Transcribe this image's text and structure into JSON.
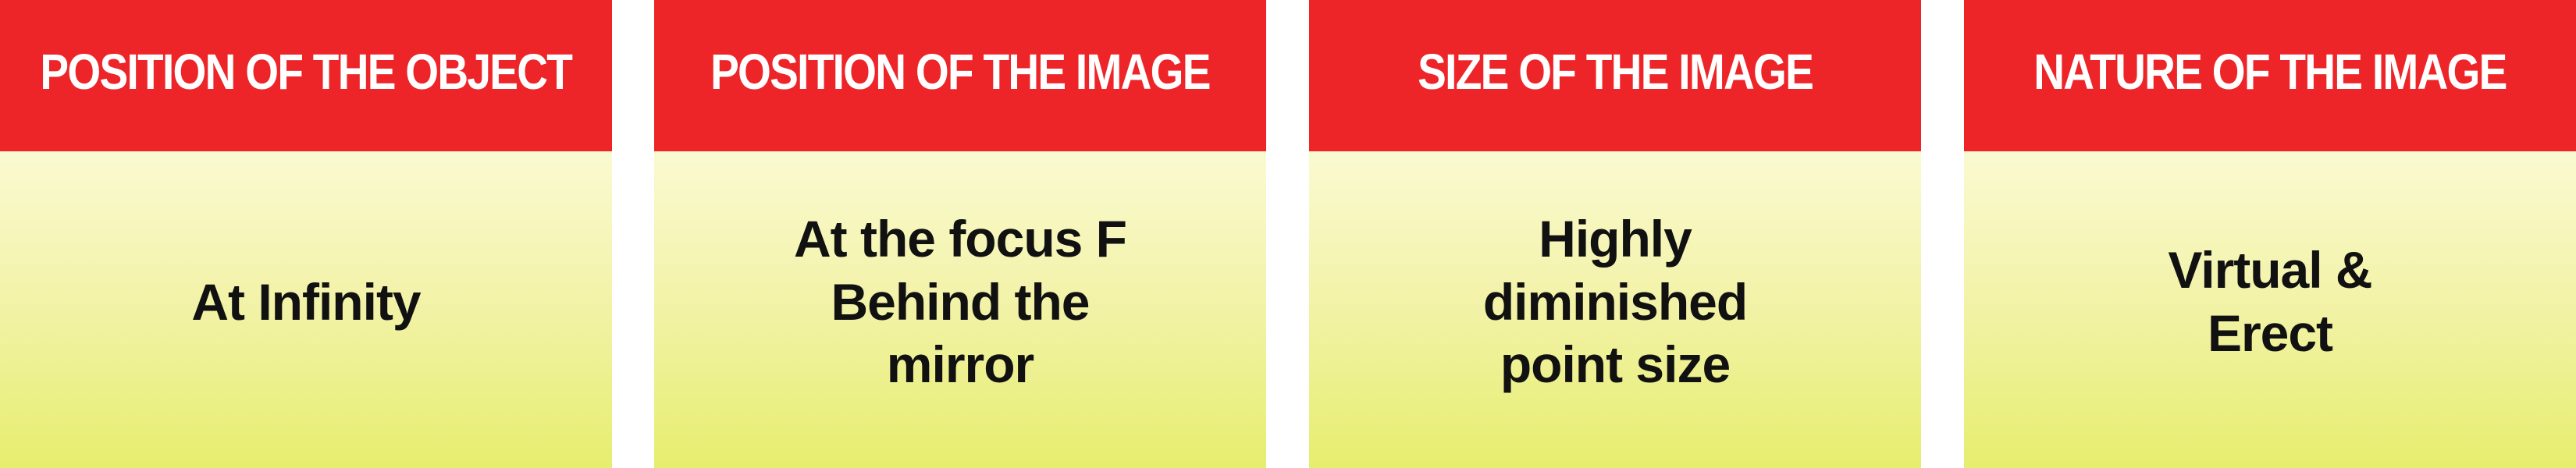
{
  "colors": {
    "header_bg": "#ee2528",
    "body_top": "#fafad2",
    "body_mid": "#f2f2a6",
    "body_bottom": "#e6ee6e"
  },
  "panels": [
    {
      "header": "POSITION OF THE OBJECT",
      "body": "At Infinity"
    },
    {
      "header": "POSITION OF THE IMAGE",
      "body": "At the focus F\nBehind the\nmirror"
    },
    {
      "header": "SIZE OF THE IMAGE",
      "body": "Highly\ndiminished\npoint size"
    },
    {
      "header": "NATURE OF THE IMAGE",
      "body": "Virtual &\nErect"
    }
  ]
}
